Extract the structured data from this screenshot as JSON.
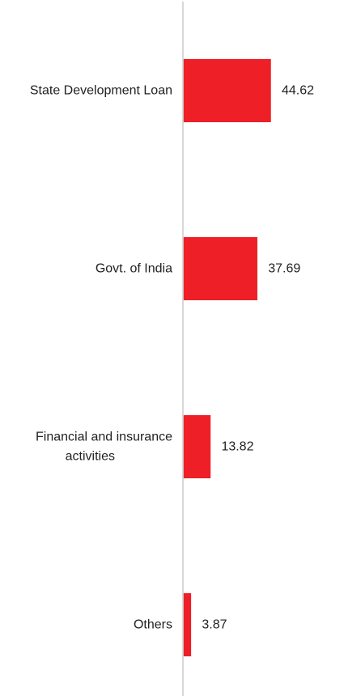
{
  "chart_data": {
    "type": "bar",
    "orientation": "horizontal",
    "categories": [
      "State Development Loan",
      "Govt. of India",
      "Financial and insurance activities",
      "Others"
    ],
    "category_lines": [
      [
        "State Development Loan"
      ],
      [
        "Govt. of India"
      ],
      [
        "Financial and insurance",
        "activities"
      ],
      [
        "Others"
      ]
    ],
    "values": [
      44.62,
      37.69,
      13.82,
      3.87
    ],
    "value_labels": [
      "44.62",
      "37.69",
      "13.82",
      "3.87"
    ],
    "xlim": [
      0,
      44.62
    ],
    "title": "",
    "xlabel": "",
    "ylabel": "",
    "grid": false,
    "legend": "none",
    "colors": {
      "bar": "#ee1f26",
      "axis": "#cccccc",
      "text": "#222222"
    }
  }
}
